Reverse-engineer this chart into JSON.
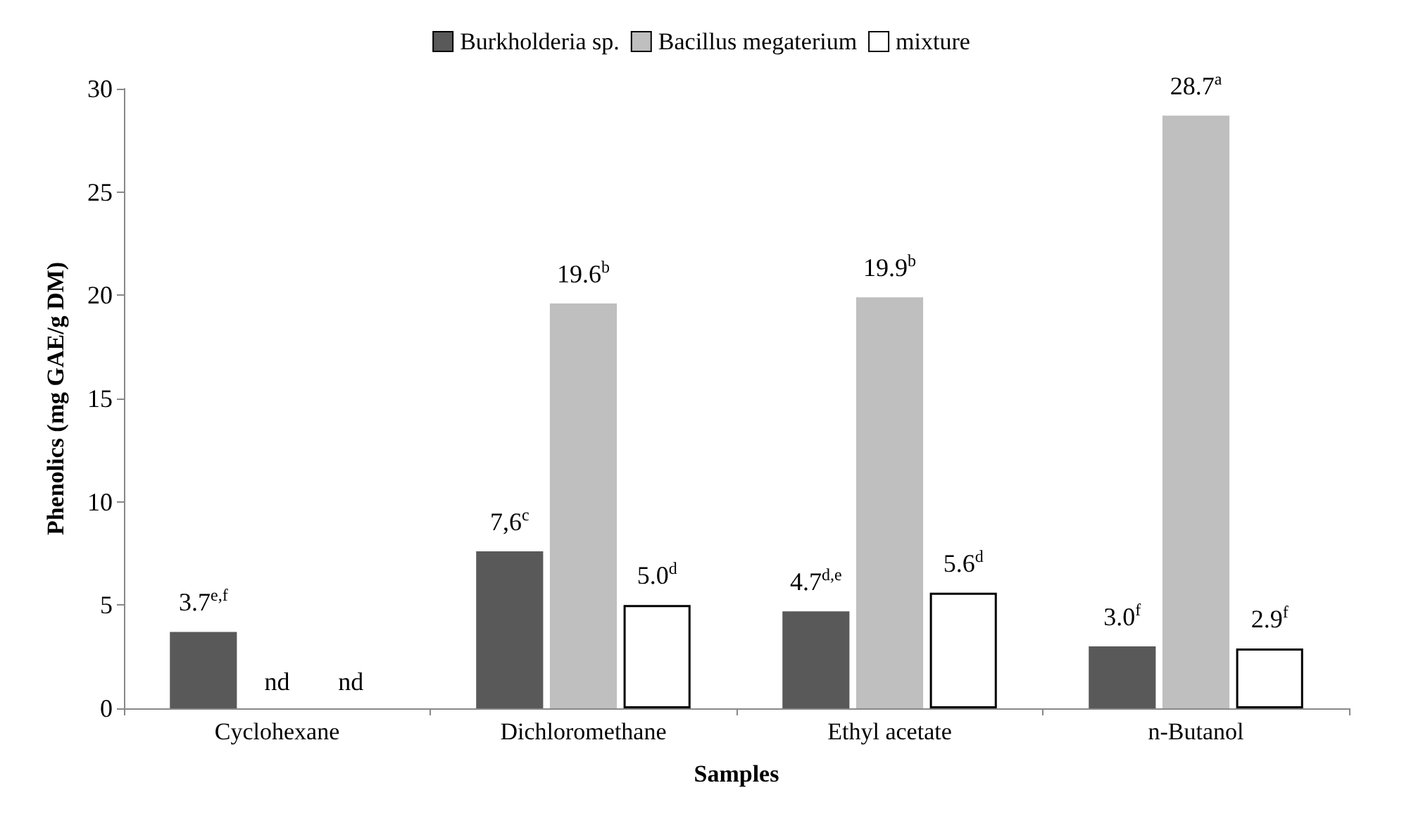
{
  "chart_data": {
    "type": "bar",
    "xlabel": "Samples",
    "ylabel": "Phenolics (mg GAE/g DM)",
    "categories": [
      "Cyclohexane",
      "Dichloromethane",
      "Ethyl acetate",
      "n-Butanol"
    ],
    "series": [
      {
        "name": "Burkholderia sp.",
        "color": "#595959",
        "values": [
          3.7,
          7.6,
          4.7,
          3.0
        ],
        "value_labels": [
          "3.7$^{e,f}$",
          "7,6$^{c}$",
          "4.7$^{d,e}$",
          "3.0$^{f}$"
        ]
      },
      {
        "name": "Bacillus megaterium",
        "color": "#bfbfbf",
        "values": [
          null,
          19.6,
          19.9,
          28.7
        ],
        "value_labels": [
          "nd",
          "19.6$^{b}$",
          "19.9$^{b}$",
          "28.7$^{a}$"
        ]
      },
      {
        "name": "mixture",
        "color": "#ffffff",
        "values": [
          null,
          5.0,
          5.6,
          2.9
        ],
        "value_labels": [
          "nd",
          "5.0$^{d}$",
          "5.6$^{d}$",
          "2.9$^{f}$"
        ]
      }
    ],
    "ylim": [
      0,
      30
    ],
    "yticks": [
      0,
      5,
      10,
      15,
      20,
      25,
      30
    ],
    "grid": false,
    "legend": "top"
  }
}
